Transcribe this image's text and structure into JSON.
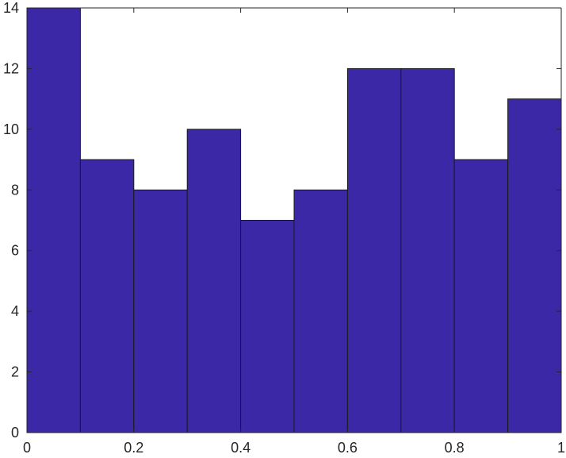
{
  "chart_data": {
    "type": "bar",
    "subtype": "histogram",
    "bin_edges": [
      0,
      0.1,
      0.2,
      0.3,
      0.4,
      0.5,
      0.6,
      0.7,
      0.8,
      0.9,
      1.0
    ],
    "values": [
      14,
      9,
      8,
      10,
      7,
      8,
      12,
      12,
      9,
      11
    ],
    "xlim": [
      0,
      1
    ],
    "ylim": [
      0,
      14
    ],
    "x_ticks": [
      0,
      0.2,
      0.4,
      0.6,
      0.8,
      1
    ],
    "x_tick_labels": [
      "0",
      "0.2",
      "0.4",
      "0.6",
      "0.8",
      "1"
    ],
    "y_ticks": [
      0,
      2,
      4,
      6,
      8,
      10,
      12,
      14
    ],
    "y_tick_labels": [
      "0",
      "2",
      "4",
      "6",
      "8",
      "10",
      "12",
      "14"
    ],
    "title": "",
    "xlabel": "",
    "ylabel": "",
    "grid": false,
    "bar_color": "#3b28a6",
    "edge_color": "#1a1a1a"
  }
}
